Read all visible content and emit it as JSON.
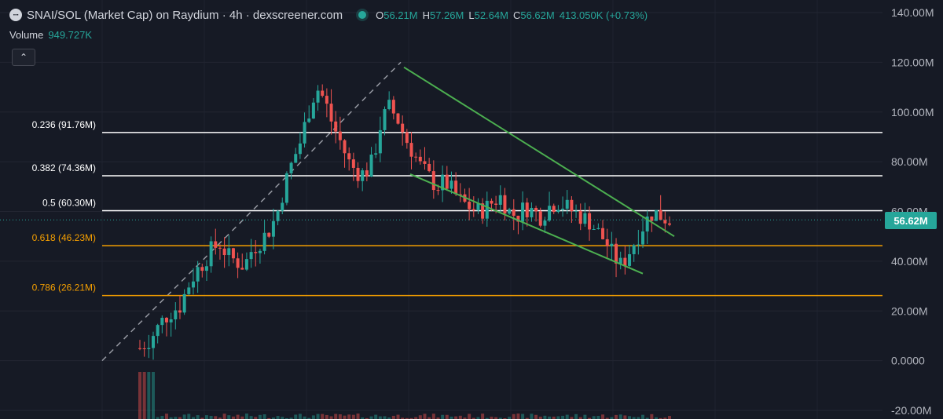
{
  "header": {
    "title": "SNAI/SOL (Market Cap) on Raydium · 4h · dexscreener.com",
    "ohlc": [
      {
        "key": "O",
        "value": "56.21M"
      },
      {
        "key": "H",
        "value": "57.26M"
      },
      {
        "key": "L",
        "value": "52.64M"
      },
      {
        "key": "C",
        "value": "56.62M"
      }
    ],
    "change": "413.050K (+0.73%)"
  },
  "volume": {
    "label": "Volume",
    "value": "949.727K"
  },
  "current_price_label": "56.62M",
  "colors": {
    "background": "#161a25",
    "bull": "#26a69a",
    "bear": "#ef5350",
    "fib_white": "#ffffff",
    "fib_orange": "#f59f00",
    "trendline": "#4caf50",
    "dashed": "#9598a1"
  },
  "chart_data": {
    "type": "candlestick",
    "y_unit": "M",
    "ylim": [
      -22,
      145
    ],
    "y_ticks": [
      {
        "value": 140,
        "label": "140.00M"
      },
      {
        "value": 120,
        "label": "120.00M"
      },
      {
        "value": 100,
        "label": "100.00M"
      },
      {
        "value": 80,
        "label": "80.00M"
      },
      {
        "value": 60,
        "label": "60.00M"
      },
      {
        "value": 40,
        "label": "40.00M"
      },
      {
        "value": 20,
        "label": "20.00M"
      },
      {
        "value": 0,
        "label": "0.0000"
      },
      {
        "value": -20,
        "label": "-20.00M"
      }
    ],
    "fib_levels": [
      {
        "ratio": "0.236",
        "value": 91.76,
        "label": "0.236 (91.76M)",
        "color": "#ffffff"
      },
      {
        "ratio": "0.382",
        "value": 74.36,
        "label": "0.382 (74.36M)",
        "color": "#ffffff"
      },
      {
        "ratio": "0.5",
        "value": 60.3,
        "label": "0.5 (60.30M)",
        "color": "#ffffff"
      },
      {
        "ratio": "0.618",
        "value": 46.23,
        "label": "0.618 (46.23M)",
        "color": "#f59f00"
      },
      {
        "ratio": "0.786",
        "value": 26.21,
        "label": "0.786 (26.21M)",
        "color": "#f59f00"
      }
    ],
    "current_price": 56.62,
    "candle_count": 120,
    "closes_path": [
      0.0,
      5,
      8,
      12,
      17,
      20,
      22,
      30,
      36,
      40,
      45,
      47,
      42,
      40,
      38,
      45,
      48,
      52,
      58,
      70,
      80,
      88,
      100,
      110,
      105,
      95,
      88,
      80,
      76,
      75,
      80,
      95,
      102,
      98,
      90,
      84,
      78,
      74,
      70,
      72,
      68,
      64,
      62,
      60,
      61,
      64,
      66,
      60,
      58,
      62,
      60,
      58,
      62,
      64,
      62,
      60,
      58,
      56,
      52,
      48,
      42,
      38,
      44,
      50,
      56,
      60,
      58,
      56.62
    ],
    "trendlines": [
      {
        "name": "upper",
        "from": [
          0.0,
          118
        ],
        "to": [
          1.0,
          52
        ]
      },
      {
        "name": "lower",
        "from": [
          0.0,
          75
        ],
        "to": [
          1.0,
          35
        ]
      }
    ]
  }
}
